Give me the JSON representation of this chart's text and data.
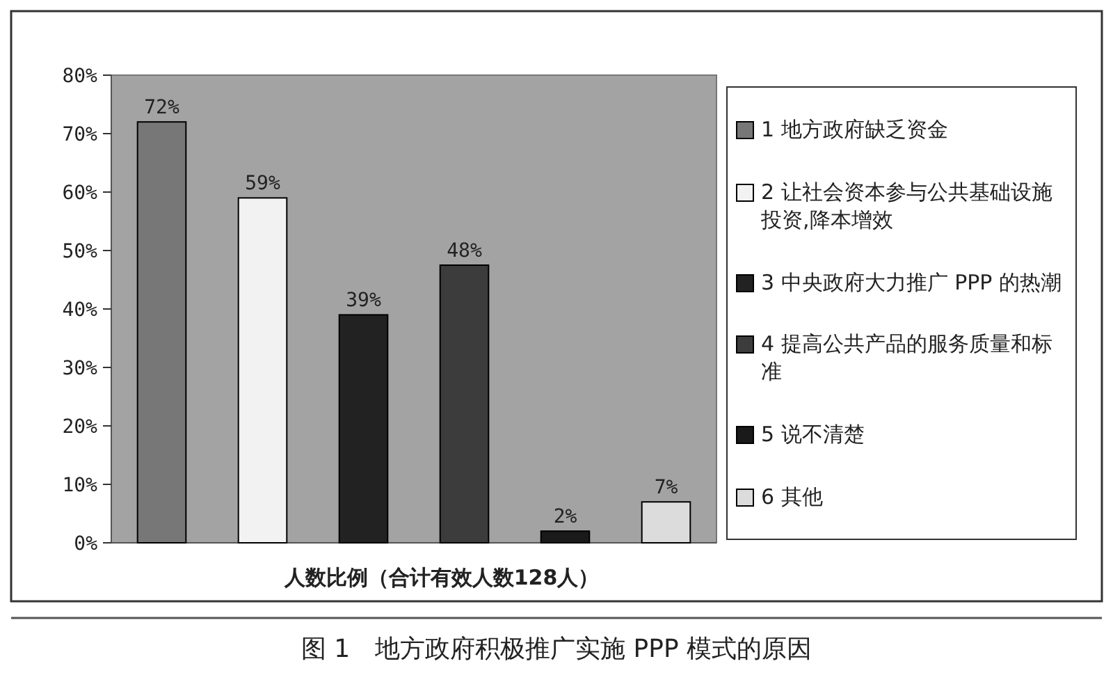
{
  "chart_data": {
    "type": "bar",
    "title": "图 1　地方政府积极推广实施 PPP 模式的原因",
    "xlabel": "人数比例（合计有效人数128人）",
    "categories": [
      null,
      null,
      null,
      null,
      null,
      null
    ],
    "series": [
      {
        "name": "1 地方政府缺乏资金",
        "color": "#777777",
        "values": [
          72,
          null,
          null,
          null,
          null,
          null
        ],
        "value_labels": [
          "72%",
          null,
          null,
          null,
          null,
          null
        ]
      },
      {
        "name": "2 让社会资本参与公共基础设施投资,降本增效",
        "color": "#f2f2f2",
        "values": [
          null,
          59,
          null,
          null,
          null,
          null
        ],
        "value_labels": [
          null,
          "59%",
          null,
          null,
          null,
          null
        ]
      },
      {
        "name": "3 中央政府大力推广 PPP 的热潮",
        "color": "#222222",
        "values": [
          null,
          null,
          39,
          null,
          null,
          null
        ],
        "value_labels": [
          null,
          null,
          "39%",
          null,
          null,
          null
        ]
      },
      {
        "name": "4 提高公共产品的服务质量和标准",
        "color": "#3c3c3c",
        "values": [
          null,
          null,
          null,
          47.5,
          null,
          null
        ],
        "value_labels": [
          null,
          null,
          null,
          "48%",
          null,
          null
        ]
      },
      {
        "name": "5 说不清楚",
        "color": "#1a1a1a",
        "values": [
          null,
          null,
          null,
          null,
          2,
          null
        ],
        "value_labels": [
          null,
          null,
          null,
          null,
          "2%",
          null
        ]
      },
      {
        "name": "6 其他",
        "color": "#dcdcdc",
        "values": [
          null,
          null,
          null,
          null,
          null,
          7
        ],
        "value_labels": [
          null,
          null,
          null,
          null,
          null,
          "7%"
        ]
      }
    ],
    "ylim": [
      0,
      80
    ],
    "yticks": [
      {
        "value": 0,
        "label": "0%"
      },
      {
        "value": 10,
        "label": "10%"
      },
      {
        "value": 20,
        "label": "20%"
      },
      {
        "value": 30,
        "label": "30%"
      },
      {
        "value": 40,
        "label": "40%"
      },
      {
        "value": 50,
        "label": "50%"
      },
      {
        "value": 60,
        "label": "60%"
      },
      {
        "value": 70,
        "label": "70%"
      },
      {
        "value": 80,
        "label": "80%"
      }
    ],
    "legend": "right"
  }
}
